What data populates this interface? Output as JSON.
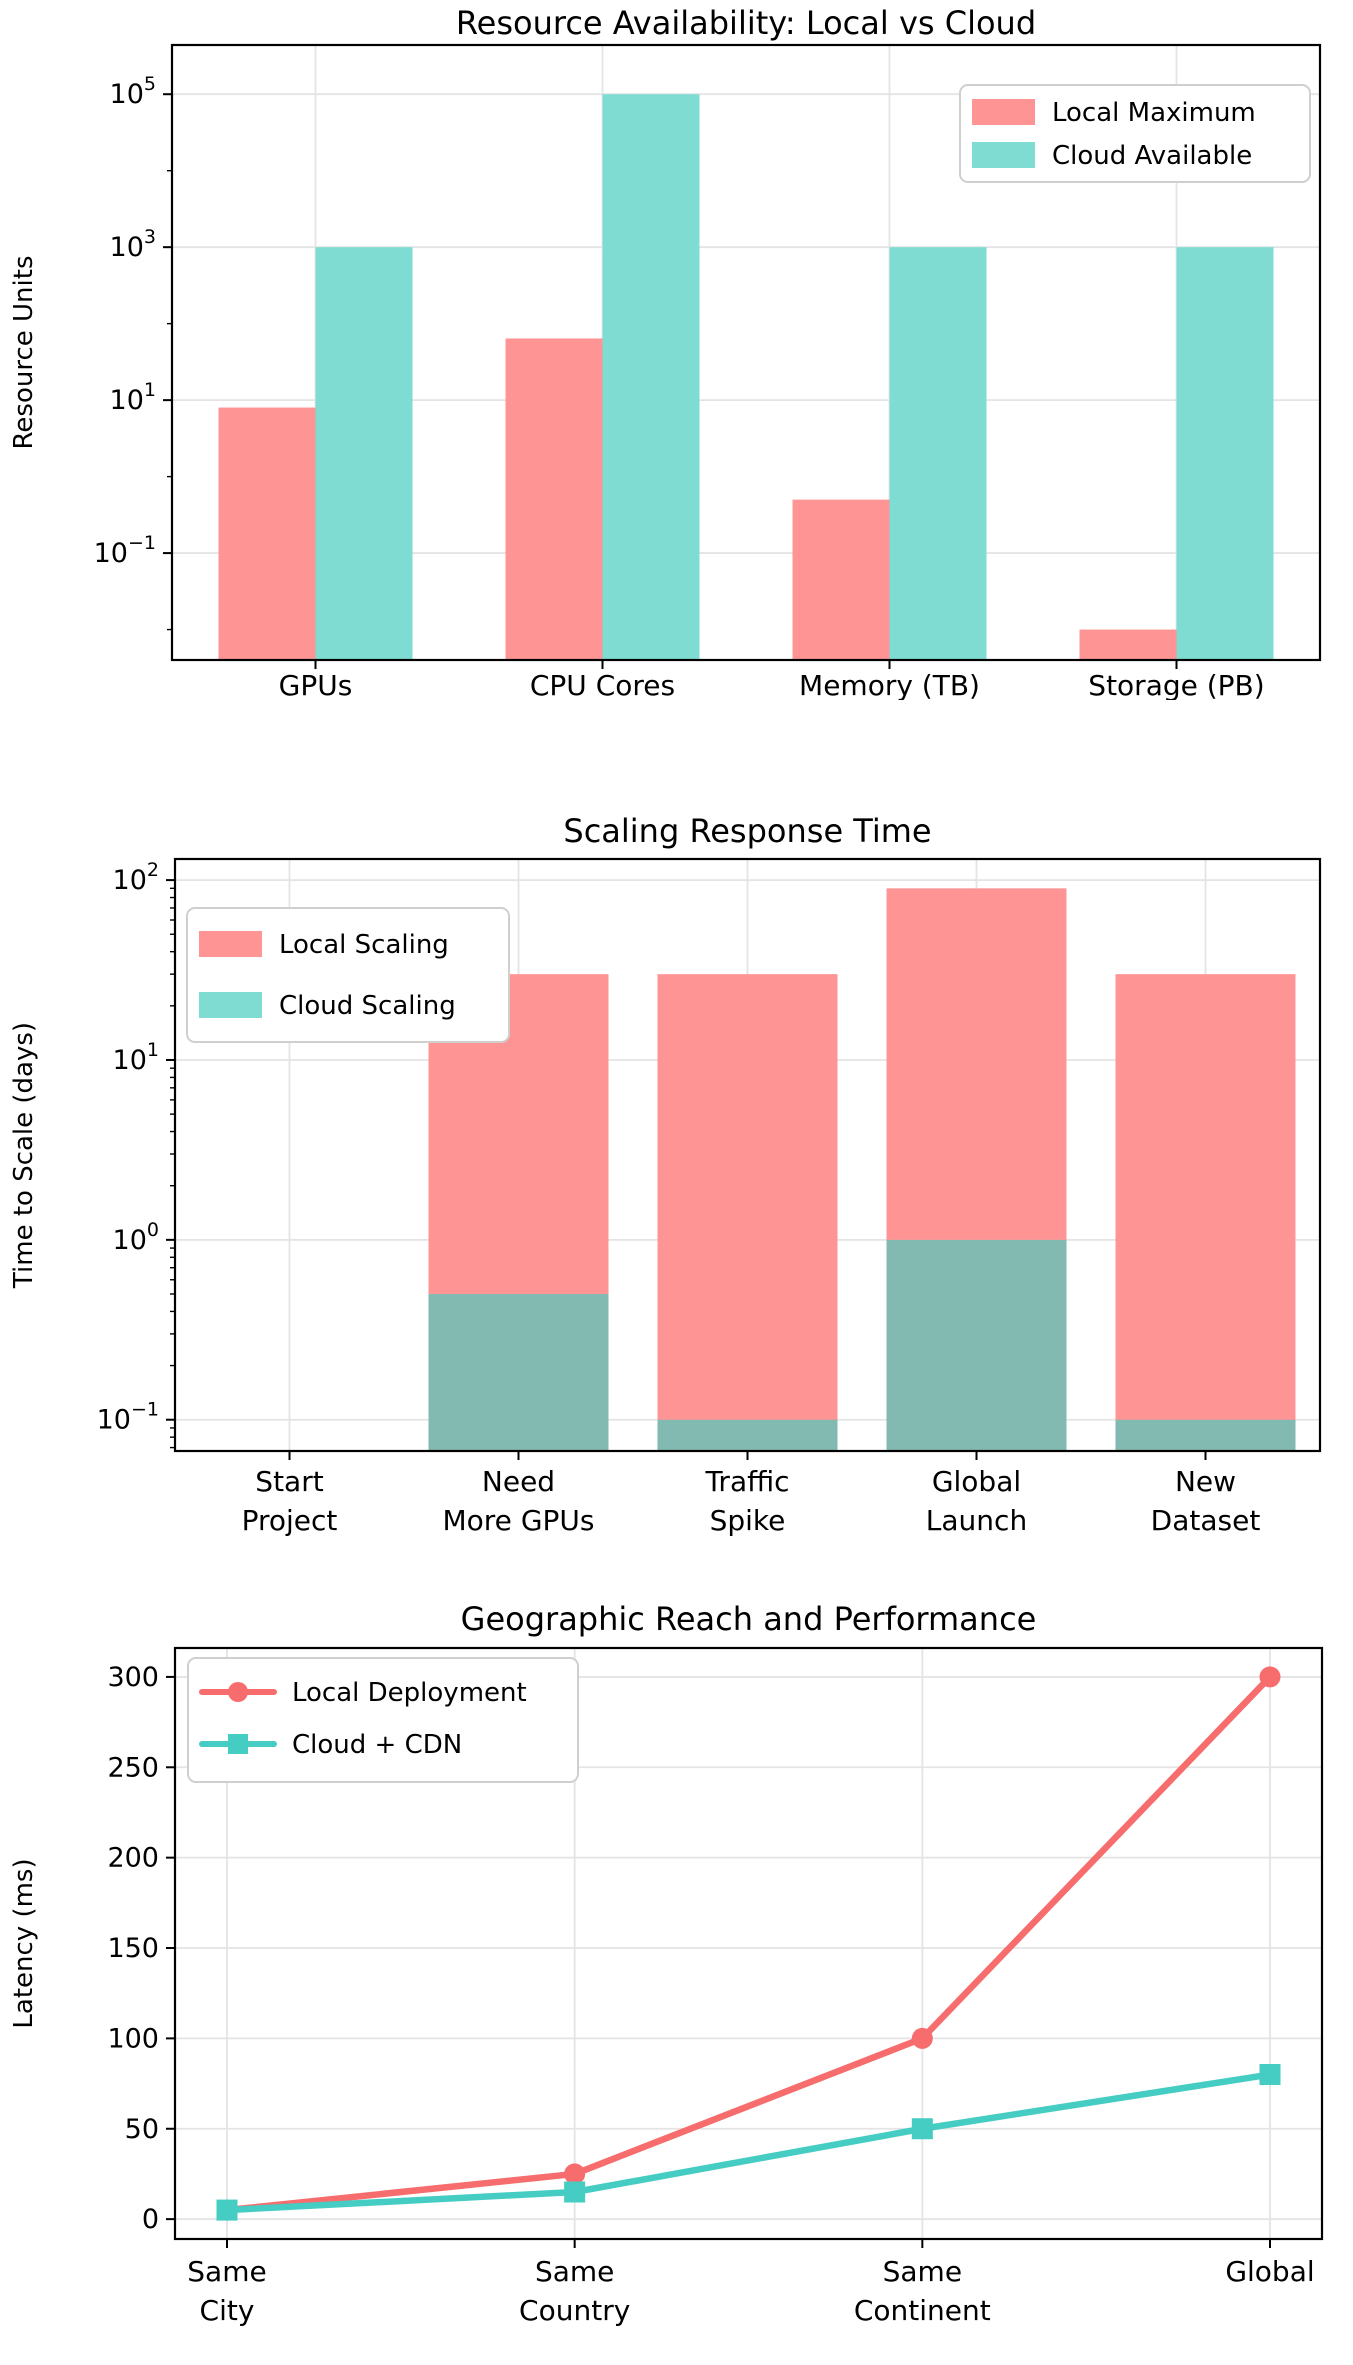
{
  "figure": {
    "background": "#ffffff",
    "text_color": "#000000",
    "grid_color": "#e4e4e4",
    "spine_color": "#000000",
    "legend_border_color": "#cfcfcf"
  },
  "chart_data": [
    {
      "id": "resource-availability",
      "type": "bar",
      "bar_mode": "grouped",
      "title": "Resource Availability: Local vs Cloud",
      "ylabel": "Resource Units",
      "yscale": "log",
      "ylim": [
        0.004,
        440000
      ],
      "ytick_exponents": [
        5,
        3,
        1,
        -1
      ],
      "grid": true,
      "legend": {
        "position": "top-right",
        "style": "patch"
      },
      "categories": [
        [
          "GPUs"
        ],
        [
          "CPU Cores"
        ],
        [
          "Memory (TB)"
        ],
        [
          "Storage (PB)"
        ]
      ],
      "series": [
        {
          "name": "Local Maximum",
          "color": "#ff9494",
          "values": [
            8,
            64,
            0.5,
            0.01
          ]
        },
        {
          "name": "Cloud Available",
          "color": "#7edcd3",
          "values": [
            1000,
            100000,
            1000,
            1000
          ]
        }
      ]
    },
    {
      "id": "scaling-response-time",
      "type": "bar",
      "bar_mode": "overlap",
      "overlap_color": "#82bab2",
      "title": "Scaling Response Time",
      "ylabel": "Time to Scale (days)",
      "yscale": "log",
      "ylim": [
        0.067,
        131
      ],
      "ytick_exponents": [
        2,
        1,
        0,
        -1
      ],
      "grid": true,
      "legend": {
        "position": "top-left",
        "style": "patch"
      },
      "categories": [
        [
          "Start",
          "Project"
        ],
        [
          "Need",
          "More GPUs"
        ],
        [
          "Traffic",
          "Spike"
        ],
        [
          "Global",
          "Launch"
        ],
        [
          "New",
          "Dataset"
        ]
      ],
      "series": [
        {
          "name": "Local Scaling",
          "color": "#ff9494",
          "values": [
            0,
            30,
            30,
            90,
            30
          ]
        },
        {
          "name": "Cloud Scaling",
          "color": "#7edcd3",
          "values": [
            0,
            0.5,
            0.1,
            1,
            0.1
          ]
        }
      ]
    },
    {
      "id": "geographic-reach",
      "type": "line",
      "title": "Geographic Reach and Performance",
      "ylabel": "Latency (ms)",
      "yscale": "linear",
      "ylim": [
        -11,
        316
      ],
      "yticks": [
        0,
        50,
        100,
        150,
        200,
        250,
        300
      ],
      "grid": true,
      "legend": {
        "position": "top-left",
        "style": "line"
      },
      "categories": [
        [
          "Same",
          "City"
        ],
        [
          "Same",
          "Country"
        ],
        [
          "Same",
          "Continent"
        ],
        [
          "Global"
        ]
      ],
      "series": [
        {
          "name": "Local Deployment",
          "color": "#f76c6c",
          "marker": "circle",
          "values": [
            5,
            25,
            100,
            300
          ]
        },
        {
          "name": "Cloud + CDN",
          "color": "#45ccc3",
          "marker": "square",
          "values": [
            5,
            15,
            50,
            80
          ]
        }
      ]
    }
  ]
}
